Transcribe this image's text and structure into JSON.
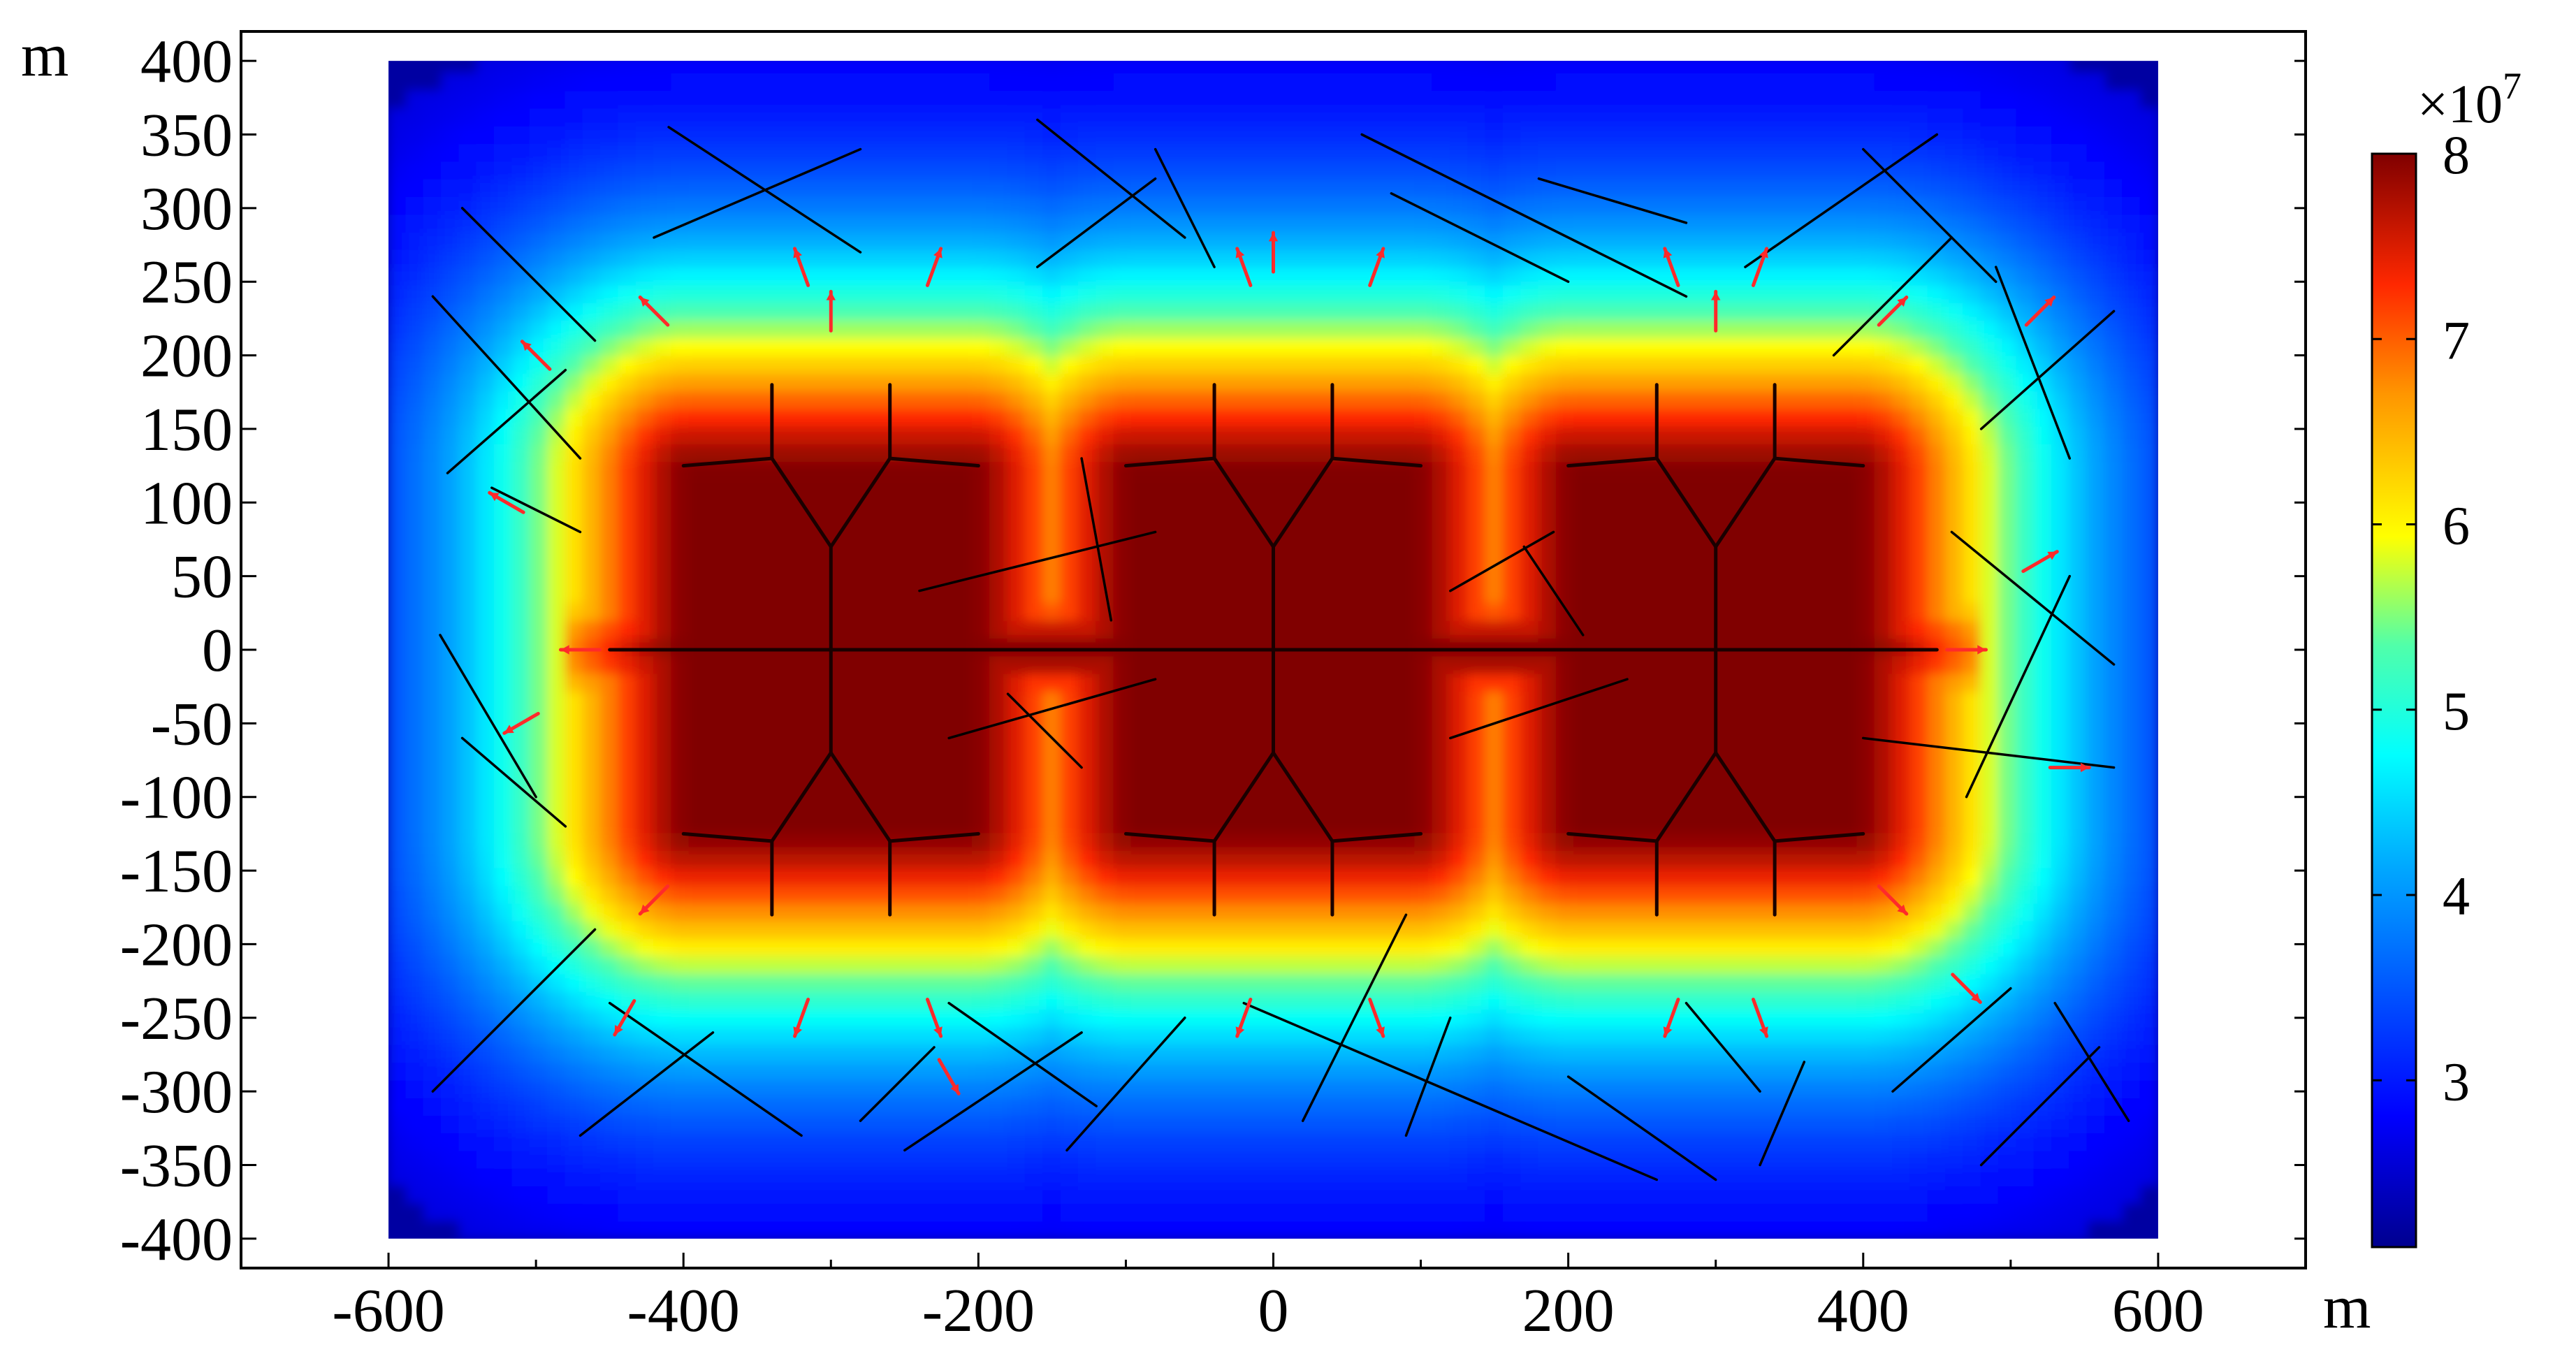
{
  "chart_data": {
    "type": "heatmap",
    "title": "",
    "xlabel": "",
    "ylabel": "",
    "x_unit": "m",
    "y_unit": "m",
    "xlim": [
      -700,
      700
    ],
    "ylim": [
      -420,
      420
    ],
    "data_extent": {
      "x": [
        -600,
        600
      ],
      "y": [
        -400,
        400
      ]
    },
    "x_ticks": [
      -600,
      -400,
      -200,
      0,
      200,
      400,
      600
    ],
    "x_tick_labels": [
      "-600",
      "-400",
      "-200",
      "0",
      "200",
      "400",
      "600"
    ],
    "y_ticks": [
      400,
      350,
      300,
      250,
      200,
      150,
      100,
      50,
      0,
      -50,
      -100,
      -150,
      -200,
      -250,
      -300,
      -350,
      -400
    ],
    "y_tick_labels": [
      "400",
      "350",
      "300",
      "250",
      "200",
      "150",
      "100",
      "50",
      "0",
      "-50",
      "-100",
      "-150",
      "-200",
      "-250",
      "-300",
      "-350",
      "-400"
    ],
    "grid": false,
    "colorbar": {
      "multiplier_label": "×10",
      "multiplier_exponent": "7",
      "range": [
        2.1,
        8.0
      ],
      "ticks": [
        8,
        7,
        6,
        5,
        4,
        3
      ],
      "tick_labels": [
        "8",
        "7",
        "6",
        "5",
        "4",
        "3"
      ],
      "placement": "right",
      "colormap": "rainbow"
    },
    "field_sources": [
      {
        "x": -300,
        "y": 0
      },
      {
        "x": 0,
        "y": 0
      },
      {
        "x": 300,
        "y": 0
      }
    ],
    "field_range": {
      "min": 2.1,
      "max": 8.0
    },
    "colors": {
      "low": "#00008f",
      "mid_low": "#0050ff",
      "mid": "#00ffff",
      "mid_high": "#ffff00",
      "high": "#ff3000",
      "max": "#800000",
      "fracture": "#000000",
      "arrow": "#ff2a2a"
    },
    "main_fractures": [
      {
        "x1": -450,
        "y1": 0,
        "x2": 450,
        "y2": 0
      },
      {
        "x1": -300,
        "y1": -70,
        "x2": -300,
        "y2": 70
      },
      {
        "x1": -300,
        "y1": 70,
        "x2": -340,
        "y2": 130
      },
      {
        "x1": -300,
        "y1": 70,
        "x2": -260,
        "y2": 130
      },
      {
        "x1": -340,
        "y1": 130,
        "x2": -340,
        "y2": 180
      },
      {
        "x1": -340,
        "y1": 130,
        "x2": -400,
        "y2": 125
      },
      {
        "x1": -260,
        "y1": 130,
        "x2": -260,
        "y2": 180
      },
      {
        "x1": -260,
        "y1": 130,
        "x2": -200,
        "y2": 125
      },
      {
        "x1": -300,
        "y1": -70,
        "x2": -340,
        "y2": -130
      },
      {
        "x1": -300,
        "y1": -70,
        "x2": -260,
        "y2": -130
      },
      {
        "x1": -340,
        "y1": -130,
        "x2": -340,
        "y2": -180
      },
      {
        "x1": -340,
        "y1": -130,
        "x2": -400,
        "y2": -125
      },
      {
        "x1": -260,
        "y1": -130,
        "x2": -260,
        "y2": -180
      },
      {
        "x1": -260,
        "y1": -130,
        "x2": -200,
        "y2": -125
      },
      {
        "x1": 0,
        "y1": -70,
        "x2": 0,
        "y2": 70
      },
      {
        "x1": 0,
        "y1": 70,
        "x2": -40,
        "y2": 130
      },
      {
        "x1": 0,
        "y1": 70,
        "x2": 40,
        "y2": 130
      },
      {
        "x1": -40,
        "y1": 130,
        "x2": -40,
        "y2": 180
      },
      {
        "x1": -40,
        "y1": 130,
        "x2": -100,
        "y2": 125
      },
      {
        "x1": 40,
        "y1": 130,
        "x2": 40,
        "y2": 180
      },
      {
        "x1": 40,
        "y1": 130,
        "x2": 100,
        "y2": 125
      },
      {
        "x1": 0,
        "y1": -70,
        "x2": -40,
        "y2": -130
      },
      {
        "x1": 0,
        "y1": -70,
        "x2": 40,
        "y2": -130
      },
      {
        "x1": -40,
        "y1": -130,
        "x2": -40,
        "y2": -180
      },
      {
        "x1": -40,
        "y1": -130,
        "x2": -100,
        "y2": -125
      },
      {
        "x1": 40,
        "y1": -130,
        "x2": 40,
        "y2": -180
      },
      {
        "x1": 40,
        "y1": -130,
        "x2": 100,
        "y2": -125
      },
      {
        "x1": 300,
        "y1": -70,
        "x2": 300,
        "y2": 70
      },
      {
        "x1": 300,
        "y1": 70,
        "x2": 260,
        "y2": 130
      },
      {
        "x1": 300,
        "y1": 70,
        "x2": 340,
        "y2": 130
      },
      {
        "x1": 260,
        "y1": 130,
        "x2": 260,
        "y2": 180
      },
      {
        "x1": 260,
        "y1": 130,
        "x2": 200,
        "y2": 125
      },
      {
        "x1": 340,
        "y1": 130,
        "x2": 340,
        "y2": 180
      },
      {
        "x1": 340,
        "y1": 130,
        "x2": 400,
        "y2": 125
      },
      {
        "x1": 300,
        "y1": -70,
        "x2": 260,
        "y2": -130
      },
      {
        "x1": 300,
        "y1": -70,
        "x2": 340,
        "y2": -130
      },
      {
        "x1": 260,
        "y1": -130,
        "x2": 260,
        "y2": -180
      },
      {
        "x1": 260,
        "y1": -130,
        "x2": 200,
        "y2": -125
      },
      {
        "x1": 340,
        "y1": -130,
        "x2": 340,
        "y2": -180
      },
      {
        "x1": 340,
        "y1": -130,
        "x2": 400,
        "y2": -125
      }
    ],
    "natural_fractures": [
      {
        "x1": -410,
        "y1": 355,
        "x2": -280,
        "y2": 270
      },
      {
        "x1": -420,
        "y1": 280,
        "x2": -280,
        "y2": 340
      },
      {
        "x1": -550,
        "y1": 300,
        "x2": -460,
        "y2": 210
      },
      {
        "x1": -570,
        "y1": 240,
        "x2": -470,
        "y2": 130
      },
      {
        "x1": -560,
        "y1": 120,
        "x2": -480,
        "y2": 190
      },
      {
        "x1": -530,
        "y1": 110,
        "x2": -470,
        "y2": 80
      },
      {
        "x1": -565,
        "y1": 10,
        "x2": -500,
        "y2": -100
      },
      {
        "x1": -550,
        "y1": -60,
        "x2": -480,
        "y2": -120
      },
      {
        "x1": -570,
        "y1": -300,
        "x2": -460,
        "y2": -190
      },
      {
        "x1": -470,
        "y1": -330,
        "x2": -380,
        "y2": -260
      },
      {
        "x1": -450,
        "y1": -240,
        "x2": -320,
        "y2": -330
      },
      {
        "x1": -250,
        "y1": -340,
        "x2": -130,
        "y2": -260
      },
      {
        "x1": -220,
        "y1": -240,
        "x2": -120,
        "y2": -310
      },
      {
        "x1": -280,
        "y1": -320,
        "x2": -230,
        "y2": -270
      },
      {
        "x1": -140,
        "y1": -340,
        "x2": -60,
        "y2": -250
      },
      {
        "x1": -20,
        "y1": -240,
        "x2": 260,
        "y2": -360
      },
      {
        "x1": 20,
        "y1": -320,
        "x2": 90,
        "y2": -180
      },
      {
        "x1": 90,
        "y1": -330,
        "x2": 120,
        "y2": -250
      },
      {
        "x1": 200,
        "y1": -290,
        "x2": 300,
        "y2": -360
      },
      {
        "x1": 280,
        "y1": -240,
        "x2": 330,
        "y2": -300
      },
      {
        "x1": 330,
        "y1": -350,
        "x2": 360,
        "y2": -280
      },
      {
        "x1": 420,
        "y1": -300,
        "x2": 500,
        "y2": -230
      },
      {
        "x1": 480,
        "y1": -350,
        "x2": 560,
        "y2": -270
      },
      {
        "x1": 530,
        "y1": -240,
        "x2": 580,
        "y2": -320
      },
      {
        "x1": 400,
        "y1": -60,
        "x2": 570,
        "y2": -80
      },
      {
        "x1": 470,
        "y1": -100,
        "x2": 540,
        "y2": 50
      },
      {
        "x1": 460,
        "y1": 80,
        "x2": 570,
        "y2": -10
      },
      {
        "x1": 540,
        "y1": 130,
        "x2": 490,
        "y2": 260
      },
      {
        "x1": 480,
        "y1": 150,
        "x2": 570,
        "y2": 230
      },
      {
        "x1": 380,
        "y1": 200,
        "x2": 460,
        "y2": 280
      },
      {
        "x1": 400,
        "y1": 340,
        "x2": 490,
        "y2": 250
      },
      {
        "x1": 320,
        "y1": 260,
        "x2": 450,
        "y2": 350
      },
      {
        "x1": 80,
        "y1": 310,
        "x2": 200,
        "y2": 250
      },
      {
        "x1": 60,
        "y1": 350,
        "x2": 280,
        "y2": 240
      },
      {
        "x1": 180,
        "y1": 320,
        "x2": 280,
        "y2": 290
      },
      {
        "x1": -80,
        "y1": 340,
        "x2": -40,
        "y2": 260
      },
      {
        "x1": -160,
        "y1": 360,
        "x2": -60,
        "y2": 280
      },
      {
        "x1": -160,
        "y1": 260,
        "x2": -80,
        "y2": 320
      },
      {
        "x1": -130,
        "y1": 130,
        "x2": -110,
        "y2": 20
      },
      {
        "x1": -240,
        "y1": 40,
        "x2": -80,
        "y2": 80
      },
      {
        "x1": -220,
        "y1": -60,
        "x2": -80,
        "y2": -20
      },
      {
        "x1": -180,
        "y1": -30,
        "x2": -130,
        "y2": -80
      },
      {
        "x1": 120,
        "y1": 40,
        "x2": 190,
        "y2": 80
      },
      {
        "x1": 170,
        "y1": 70,
        "x2": 210,
        "y2": 10
      },
      {
        "x1": 120,
        "y1": -60,
        "x2": 240,
        "y2": -20
      }
    ],
    "flow_arrows": [
      {
        "x": -320,
        "y": 260,
        "a": 110
      },
      {
        "x": -230,
        "y": 260,
        "a": 70
      },
      {
        "x": -20,
        "y": 260,
        "a": 110
      },
      {
        "x": 70,
        "y": 260,
        "a": 70
      },
      {
        "x": 270,
        "y": 260,
        "a": 110
      },
      {
        "x": 330,
        "y": 260,
        "a": 70
      },
      {
        "x": -420,
        "y": 230,
        "a": 135
      },
      {
        "x": 420,
        "y": 230,
        "a": 45
      },
      {
        "x": -500,
        "y": 200,
        "a": 135
      },
      {
        "x": 520,
        "y": 230,
        "a": 45
      },
      {
        "x": -470,
        "y": 0,
        "a": 180
      },
      {
        "x": 470,
        "y": 0,
        "a": 0
      },
      {
        "x": -420,
        "y": -170,
        "a": 225
      },
      {
        "x": 420,
        "y": -170,
        "a": 315
      },
      {
        "x": -320,
        "y": -250,
        "a": 250
      },
      {
        "x": -230,
        "y": -250,
        "a": 290
      },
      {
        "x": -20,
        "y": -250,
        "a": 250
      },
      {
        "x": 70,
        "y": -250,
        "a": 290
      },
      {
        "x": 270,
        "y": -250,
        "a": 250
      },
      {
        "x": 330,
        "y": -250,
        "a": 290
      },
      {
        "x": -440,
        "y": -250,
        "a": 240
      },
      {
        "x": 470,
        "y": -230,
        "a": 315
      },
      {
        "x": 540,
        "y": -80,
        "a": 0
      },
      {
        "x": -520,
        "y": 100,
        "a": 150
      },
      {
        "x": 520,
        "y": 60,
        "a": 30
      },
      {
        "x": -510,
        "y": -50,
        "a": 210
      },
      {
        "x": -220,
        "y": -290,
        "a": 300
      },
      {
        "x": 0,
        "y": 270,
        "a": 90
      },
      {
        "x": -300,
        "y": 230,
        "a": 90
      },
      {
        "x": 300,
        "y": 230,
        "a": 90
      }
    ]
  }
}
